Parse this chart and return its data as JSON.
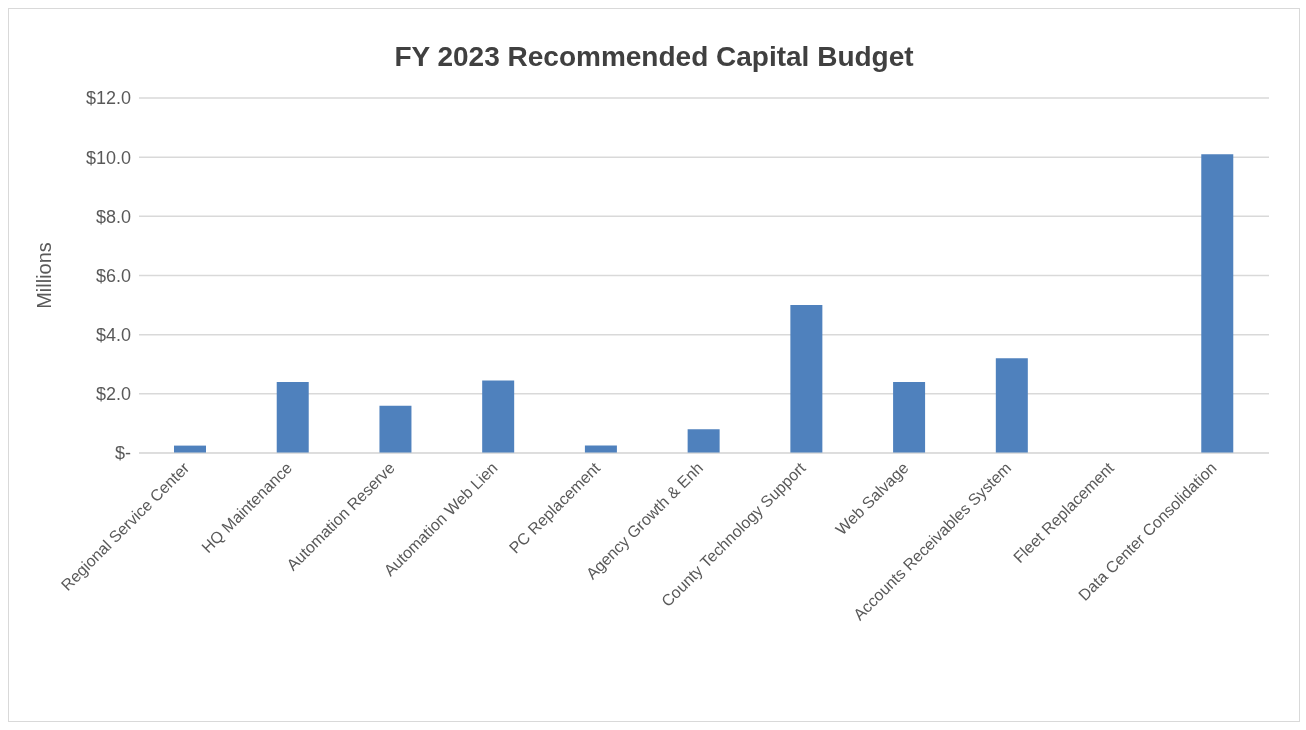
{
  "chart_data": {
    "type": "bar",
    "title": "FY 2023 Recommended Capital Budget",
    "ylabel": "Millions",
    "categories": [
      "Regional Service Center",
      "HQ Maintenance",
      "Automation Reserve",
      "Automation Web Lien",
      "PC Replacement",
      "Agency Growth & Enh",
      "County Technology Support",
      "Web Salvage",
      "Accounts Receivables System",
      "Fleet Replacement",
      "Data Center Consolidation"
    ],
    "values": [
      0.25,
      2.4,
      1.6,
      2.45,
      0.25,
      0.8,
      5.0,
      2.4,
      3.2,
      0,
      10.1
    ],
    "color": "#4f81bd",
    "ylim": [
      0,
      12
    ],
    "yticks": [
      {
        "value": 0,
        "label": "$-"
      },
      {
        "value": 2,
        "label": "$2.0"
      },
      {
        "value": 4,
        "label": "$4.0"
      },
      {
        "value": 6,
        "label": "$6.0"
      },
      {
        "value": 8,
        "label": "$8.0"
      },
      {
        "value": 10,
        "label": "$10.0"
      },
      {
        "value": 12,
        "label": "$12.0"
      }
    ],
    "grid": "y"
  }
}
